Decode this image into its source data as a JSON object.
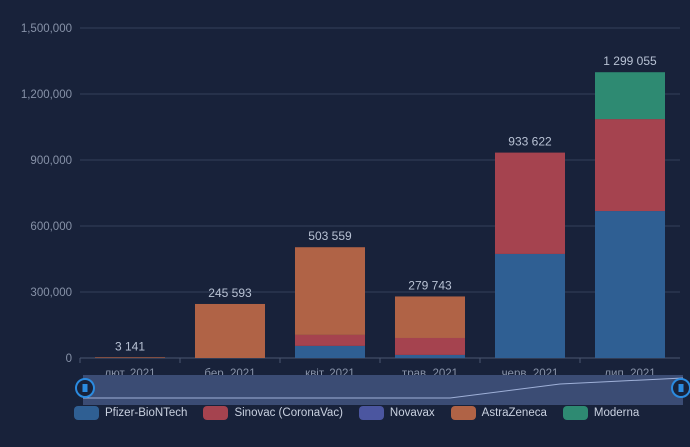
{
  "chart_data": {
    "type": "bar",
    "stacked": true,
    "categories": [
      "лют. 2021",
      "бер. 2021",
      "квіт. 2021",
      "трав. 2021",
      "черв. 2021",
      "лип. 2021"
    ],
    "totals_labels": [
      "3 141",
      "245 593",
      "503 559",
      "279 743",
      "933 622",
      "1 299 055"
    ],
    "series": [
      {
        "name": "Pfizer-BioNTech",
        "color": "#2f5f93",
        "values": [
          0,
          0,
          55000,
          14000,
          473000,
          668000
        ]
      },
      {
        "name": "Sinovac (CoronaVac)",
        "color": "#a5434f",
        "values": [
          0,
          0,
          50000,
          77000,
          460622,
          418000
        ]
      },
      {
        "name": "Novavax",
        "color": "#4b56a0",
        "values": [
          0,
          0,
          0,
          0,
          0,
          0
        ]
      },
      {
        "name": "AstraZeneca",
        "color": "#b06346",
        "values": [
          3141,
          245593,
          398559,
          188743,
          0,
          0
        ]
      },
      {
        "name": "Moderna",
        "color": "#2e8a72",
        "values": [
          0,
          0,
          0,
          0,
          0,
          213055
        ]
      }
    ],
    "yticks": [
      "0",
      "300,000",
      "600,000",
      "900,000",
      "1,200,000",
      "1,500,000"
    ],
    "ylim": [
      0,
      1500000
    ],
    "grid": true,
    "legend": "bottom-left"
  }
}
